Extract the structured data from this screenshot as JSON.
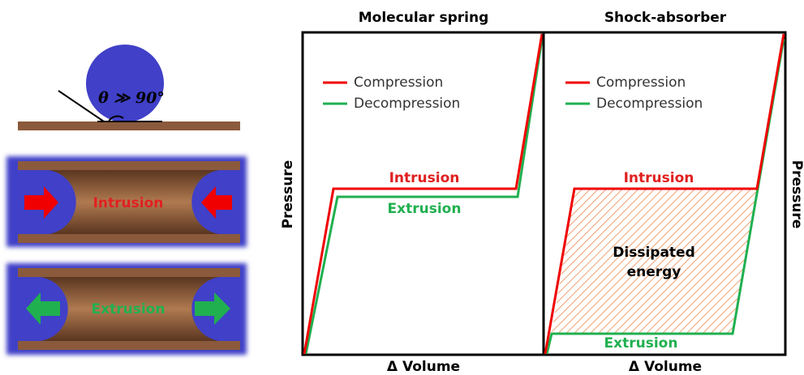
{
  "droplet": {
    "angle_label": "θ ≫ 90°"
  },
  "pores": [
    {
      "label": "Intrusion"
    },
    {
      "label": "Extrusion"
    }
  ],
  "panels": [
    {
      "title": "Molecular spring",
      "legend": [
        "Compression",
        "Decompression"
      ],
      "upper_label": "Intrusion",
      "lower_label": "Extrusion",
      "x_label": "Δ Volume",
      "y_label": "Pressure"
    },
    {
      "title": "Shock-absorber",
      "legend": [
        "Compression",
        "Decompression"
      ],
      "upper_label": "Intrusion",
      "lower_label": "Extrusion",
      "area_label": [
        "Dissipated",
        "energy"
      ],
      "x_label": "Δ Volume",
      "y_label": "Pressure"
    }
  ]
}
